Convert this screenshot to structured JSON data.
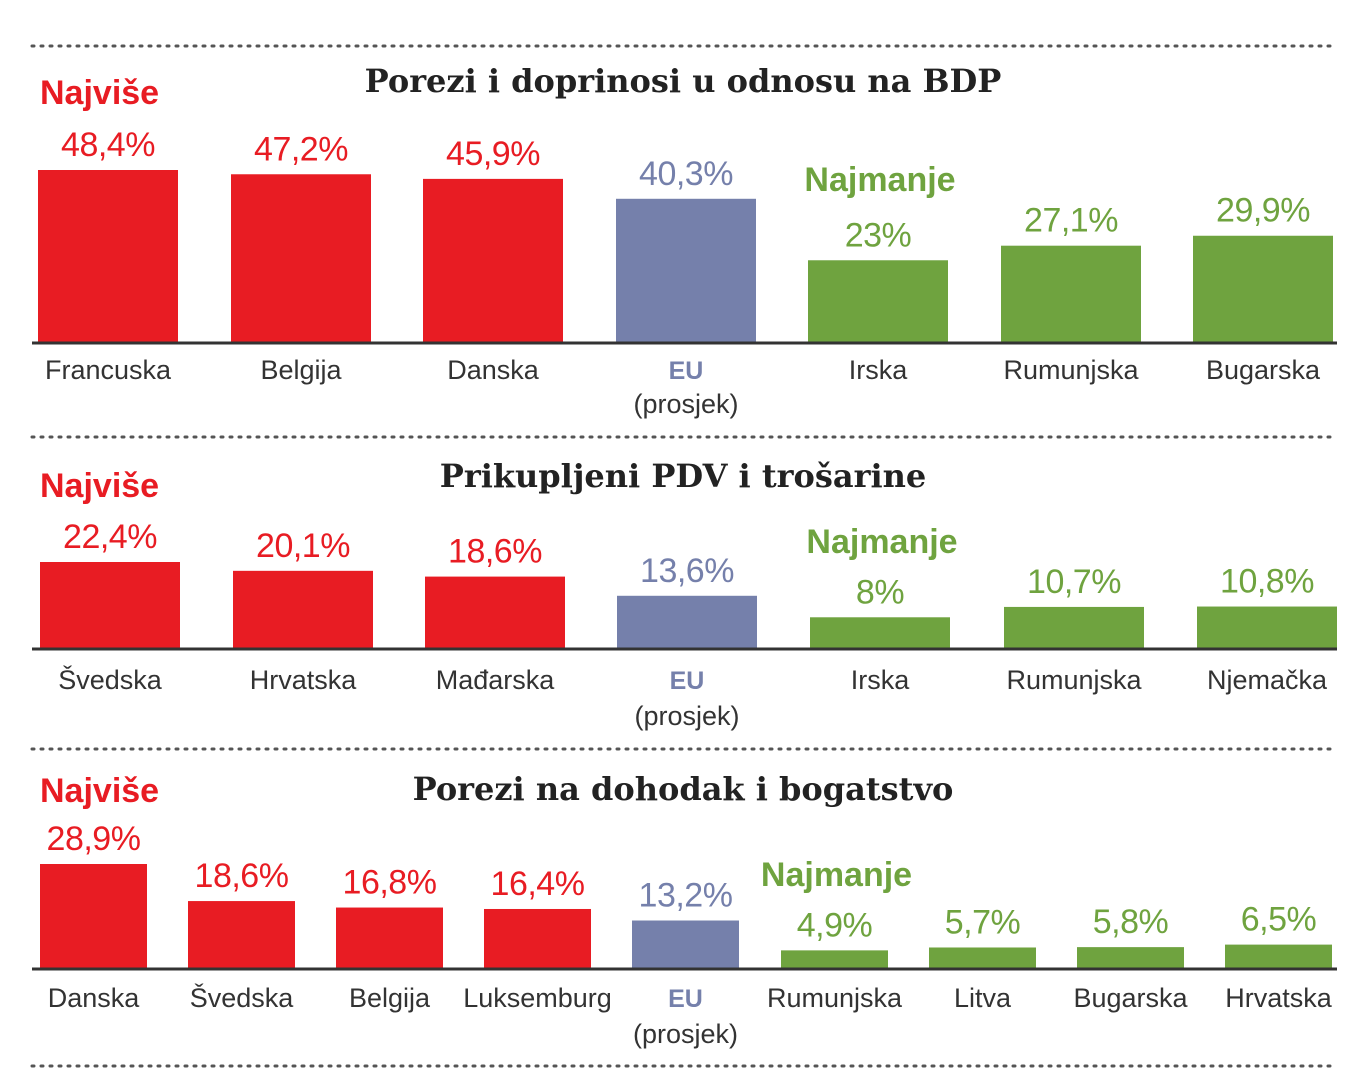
{
  "colors": {
    "highest": "#e81c23",
    "eu": "#7580ab",
    "lowest": "#6fa33f",
    "axis": "#333333",
    "divider": "#555555"
  },
  "chart_data": [
    {
      "type": "bar",
      "title": "Porezi i doprinosi u odnosu na BDP",
      "highest_label": "Najviše",
      "lowest_label": "Najmanje",
      "categories": [
        "Francuska",
        "Belgija",
        "Danska",
        "EU",
        "Irska",
        "Rumunjska",
        "Bugarska"
      ],
      "category_sublabels": [
        "",
        "",
        "",
        "(prosjek)",
        "",
        "",
        ""
      ],
      "groups": [
        "highest",
        "highest",
        "highest",
        "eu",
        "lowest",
        "lowest",
        "lowest"
      ],
      "values": [
        48.4,
        47.2,
        45.9,
        40.3,
        23,
        27.1,
        29.9
      ],
      "value_labels": [
        "48,4%",
        "47,2%",
        "45,9%",
        "40,3%",
        "23%",
        "27,1%",
        "29,9%"
      ],
      "ylim": [
        0,
        50
      ]
    },
    {
      "type": "bar",
      "title": "Prikupljeni PDV i trošarine",
      "highest_label": "Najviše",
      "lowest_label": "Najmanje",
      "categories": [
        "Švedska",
        "Hrvatska",
        "Mađarska",
        "EU",
        "Irska",
        "Rumunjska",
        "Njemačka"
      ],
      "category_sublabels": [
        "",
        "",
        "",
        "(prosjek)",
        "",
        "",
        ""
      ],
      "groups": [
        "highest",
        "highest",
        "highest",
        "eu",
        "lowest",
        "lowest",
        "lowest"
      ],
      "values": [
        22.4,
        20.1,
        18.6,
        13.6,
        8,
        10.7,
        10.8
      ],
      "value_labels": [
        "22,4%",
        "20,1%",
        "18,6%",
        "13,6%",
        "8%",
        "10,7%",
        "10,8%"
      ],
      "ylim": [
        0,
        25
      ]
    },
    {
      "type": "bar",
      "title": "Porezi na dohodak i bogatstvo",
      "highest_label": "Najviše",
      "lowest_label": "Najmanje",
      "categories": [
        "Danska",
        "Švedska",
        "Belgija",
        "Luksemburg",
        "EU",
        "Rumunjska",
        "Litva",
        "Bugarska",
        "Hrvatska"
      ],
      "category_sublabels": [
        "",
        "",
        "",
        "",
        "(prosjek)",
        "",
        "",
        "",
        ""
      ],
      "groups": [
        "highest",
        "highest",
        "highest",
        "highest",
        "eu",
        "lowest",
        "lowest",
        "lowest",
        "lowest"
      ],
      "values": [
        28.9,
        18.6,
        16.8,
        16.4,
        13.2,
        4.9,
        5.7,
        5.8,
        6.5
      ],
      "value_labels": [
        "28,9%",
        "18,6%",
        "16,8%",
        "16,4%",
        "13,2%",
        "4,9%",
        "5,7%",
        "5,8%",
        "6,5%"
      ],
      "ylim": [
        0,
        30
      ]
    }
  ]
}
